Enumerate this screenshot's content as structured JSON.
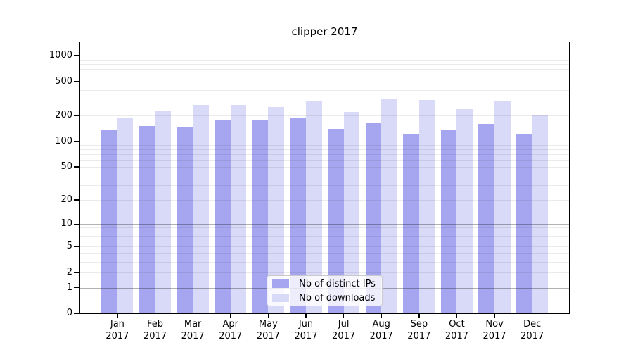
{
  "title": "clipper 2017",
  "colors": {
    "bar_ips": "#a6a6f0",
    "bar_downloads": "#d9d9f8",
    "grid_major": "rgba(0,0,0,0.30)",
    "grid_minor": "rgba(0,0,0,0.08)",
    "axis": "#000000",
    "legend_border": "#c9c9c9"
  },
  "chart_data": {
    "type": "bar",
    "title": "clipper 2017",
    "categories": [
      "Jan 2017",
      "Feb 2017",
      "Mar 2017",
      "Apr 2017",
      "May 2017",
      "Jun 2017",
      "Jul 2017",
      "Aug 2017",
      "Sep 2017",
      "Oct 2017",
      "Nov 2017",
      "Dec 2017"
    ],
    "series": [
      {
        "name": "Nb of distinct IPs",
        "color": "#a6a6f0",
        "values": [
          134,
          151,
          145,
          177,
          174,
          191,
          141,
          163,
          123,
          136,
          161,
          123
        ]
      },
      {
        "name": "Nb of downloads",
        "color": "#d9d9f8",
        "values": [
          188,
          224,
          266,
          267,
          251,
          298,
          220,
          307,
          302,
          239,
          294,
          200
        ]
      }
    ],
    "y_axis": {
      "ticks": [
        0,
        1,
        2,
        5,
        10,
        20,
        50,
        100,
        200,
        500,
        1000
      ],
      "scale": "log10(1+v)",
      "ylim": [
        0,
        1430
      ],
      "grid_major_at": [
        1,
        10,
        100,
        1000
      ]
    },
    "x_axis": {
      "tick_labels_two_lines": true,
      "year": "2017"
    },
    "grid": "horizontal, log minors 2-9 per decade",
    "legend_position": "lower center"
  },
  "legend": {
    "items": [
      {
        "label": "Nb of distinct IPs"
      },
      {
        "label": "Nb of downloads"
      }
    ]
  }
}
